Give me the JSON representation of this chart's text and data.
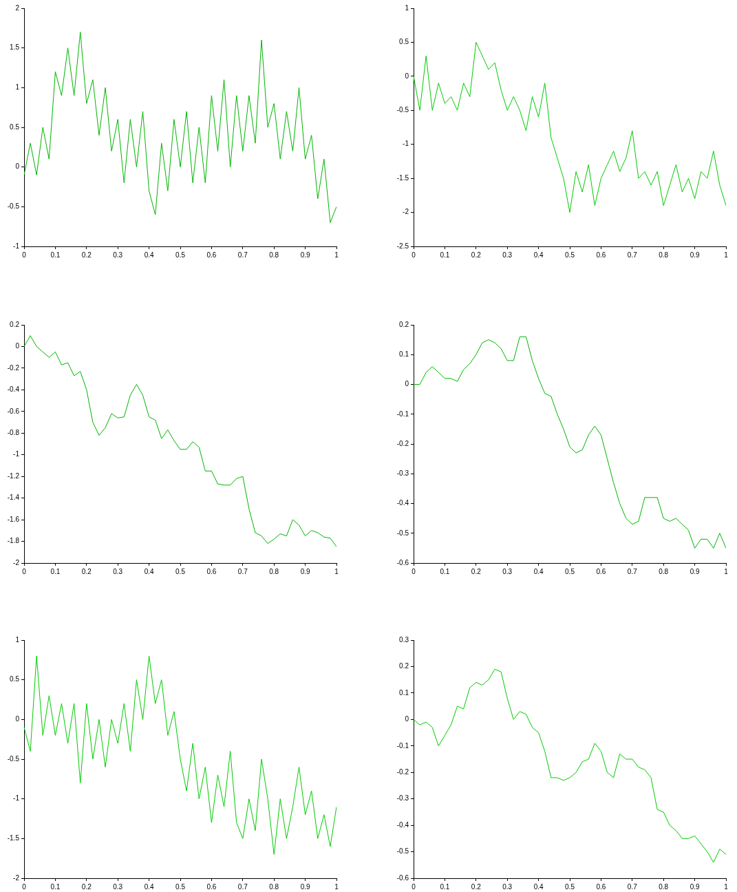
{
  "chart_data": [
    {
      "type": "line",
      "x": [
        0,
        0.02,
        0.04,
        0.06,
        0.08,
        0.1,
        0.12,
        0.14,
        0.16,
        0.18,
        0.2,
        0.22,
        0.24,
        0.26,
        0.28,
        0.3,
        0.32,
        0.34,
        0.36,
        0.38,
        0.4,
        0.42,
        0.44,
        0.46,
        0.48,
        0.5,
        0.52,
        0.54,
        0.56,
        0.58,
        0.6,
        0.62,
        0.64,
        0.66,
        0.68,
        0.7,
        0.72,
        0.74,
        0.76,
        0.78,
        0.8,
        0.82,
        0.84,
        0.86,
        0.88,
        0.9,
        0.92,
        0.94,
        0.96,
        0.98,
        1
      ],
      "series": [
        {
          "color": "#00b400",
          "values": [
            -0.1,
            0.3,
            -0.1,
            0.5,
            0.1,
            1.2,
            0.9,
            1.5,
            0.9,
            1.7,
            0.8,
            1.1,
            0.4,
            1.0,
            0.2,
            0.6,
            -0.2,
            0.6,
            0.0,
            0.7,
            -0.3,
            -0.6,
            0.3,
            -0.3,
            0.6,
            0.0,
            0.7,
            -0.2,
            0.5,
            -0.2,
            0.9,
            0.2,
            1.1,
            0.0,
            0.9,
            0.2,
            0.9,
            0.3,
            1.6,
            0.5,
            0.8,
            0.1,
            0.7,
            0.2,
            1.0,
            0.1,
            0.4,
            -0.4,
            0.1,
            -0.7,
            -0.5
          ]
        }
      ],
      "xlim": [
        0,
        1
      ],
      "xticks": [
        0,
        0.1,
        0.2,
        0.3,
        0.4,
        0.5,
        0.6,
        0.7,
        0.8,
        0.9,
        1
      ],
      "ylim": [
        -1,
        2
      ],
      "yticks": [
        -1,
        -0.5,
        0,
        0.5,
        1,
        1.5,
        2
      ],
      "grid": false,
      "legend": false,
      "marker": "none",
      "line_style": "solid"
    },
    {
      "type": "line",
      "x": [
        0,
        0.02,
        0.04,
        0.06,
        0.08,
        0.1,
        0.12,
        0.14,
        0.16,
        0.18,
        0.2,
        0.22,
        0.24,
        0.26,
        0.28,
        0.3,
        0.32,
        0.34,
        0.36,
        0.38,
        0.4,
        0.42,
        0.44,
        0.46,
        0.48,
        0.5,
        0.52,
        0.54,
        0.56,
        0.58,
        0.6,
        0.62,
        0.64,
        0.66,
        0.68,
        0.7,
        0.72,
        0.74,
        0.76,
        0.78,
        0.8,
        0.82,
        0.84,
        0.86,
        0.88,
        0.9,
        0.92,
        0.94,
        0.96,
        0.98,
        1
      ],
      "series": [
        {
          "color": "#00cc00",
          "values": [
            0.0,
            -0.5,
            0.3,
            -0.5,
            -0.1,
            -0.4,
            -0.3,
            -0.5,
            -0.1,
            -0.3,
            0.5,
            0.3,
            0.1,
            0.2,
            -0.2,
            -0.5,
            -0.3,
            -0.5,
            -0.8,
            -0.3,
            -0.6,
            -0.1,
            -0.9,
            -1.2,
            -1.5,
            -2.0,
            -1.4,
            -1.7,
            -1.3,
            -1.9,
            -1.5,
            -1.3,
            -1.1,
            -1.4,
            -1.2,
            -0.8,
            -1.5,
            -1.4,
            -1.6,
            -1.4,
            -1.9,
            -1.6,
            -1.3,
            -1.7,
            -1.5,
            -1.8,
            -1.4,
            -1.5,
            -1.1,
            -1.6,
            -1.9
          ]
        }
      ],
      "xlim": [
        0,
        1
      ],
      "xticks": [
        0,
        0.1,
        0.2,
        0.3,
        0.4,
        0.5,
        0.6,
        0.7,
        0.8,
        0.9,
        1
      ],
      "ylim": [
        -2.5,
        1
      ],
      "yticks": [
        -2.5,
        -2,
        -1.5,
        -1,
        -0.5,
        0,
        0.5,
        1
      ],
      "grid": false,
      "legend": false,
      "marker": "none",
      "line_style": "solid"
    },
    {
      "type": "line",
      "x": [
        0,
        0.02,
        0.04,
        0.06,
        0.08,
        0.1,
        0.12,
        0.14,
        0.16,
        0.18,
        0.2,
        0.22,
        0.24,
        0.26,
        0.28,
        0.3,
        0.32,
        0.34,
        0.36,
        0.38,
        0.4,
        0.42,
        0.44,
        0.46,
        0.48,
        0.5,
        0.52,
        0.54,
        0.56,
        0.58,
        0.6,
        0.62,
        0.64,
        0.66,
        0.68,
        0.7,
        0.72,
        0.74,
        0.76,
        0.78,
        0.8,
        0.82,
        0.84,
        0.86,
        0.88,
        0.9,
        0.92,
        0.94,
        0.96,
        0.98,
        1
      ],
      "series": [
        {
          "color": "#00b400",
          "values": [
            0,
            0.1,
            0.0,
            -0.05,
            -0.1,
            -0.05,
            -0.17,
            -0.15,
            -0.27,
            -0.23,
            -0.4,
            -0.7,
            -0.82,
            -0.75,
            -0.62,
            -0.66,
            -0.65,
            -0.45,
            -0.35,
            -0.45,
            -0.65,
            -0.68,
            -0.85,
            -0.77,
            -0.87,
            -0.95,
            -0.95,
            -0.88,
            -0.93,
            -1.15,
            -1.15,
            -1.27,
            -1.28,
            -1.28,
            -1.22,
            -1.2,
            -1.5,
            -1.72,
            -1.75,
            -1.82,
            -1.78,
            -1.73,
            -1.75,
            -1.6,
            -1.65,
            -1.75,
            -1.7,
            -1.72,
            -1.76,
            -1.77,
            -1.85
          ]
        }
      ],
      "xlim": [
        0,
        1
      ],
      "xticks": [
        0,
        0.1,
        0.2,
        0.3,
        0.4,
        0.5,
        0.6,
        0.7,
        0.8,
        0.9,
        1
      ],
      "ylim": [
        -2,
        0.2
      ],
      "yticks": [
        -2,
        -1.8,
        -1.6,
        -1.4,
        -1.2,
        -1,
        -0.8,
        -0.6,
        -0.4,
        -0.2,
        0,
        0.2
      ],
      "grid": false,
      "legend": false,
      "marker": "none",
      "line_style": "solid"
    },
    {
      "type": "line",
      "x": [
        0,
        0.02,
        0.04,
        0.06,
        0.08,
        0.1,
        0.12,
        0.14,
        0.16,
        0.18,
        0.2,
        0.22,
        0.24,
        0.26,
        0.28,
        0.3,
        0.32,
        0.34,
        0.36,
        0.38,
        0.4,
        0.42,
        0.44,
        0.46,
        0.48,
        0.5,
        0.52,
        0.54,
        0.56,
        0.58,
        0.6,
        0.62,
        0.64,
        0.66,
        0.68,
        0.7,
        0.72,
        0.74,
        0.76,
        0.78,
        0.8,
        0.82,
        0.84,
        0.86,
        0.88,
        0.9,
        0.92,
        0.94,
        0.96,
        0.98,
        1
      ],
      "series": [
        {
          "color": "#00b400",
          "values": [
            0,
            0.0,
            0.04,
            0.06,
            0.04,
            0.02,
            0.02,
            0.01,
            0.05,
            0.07,
            0.1,
            0.14,
            0.15,
            0.14,
            0.12,
            0.08,
            0.08,
            0.16,
            0.16,
            0.08,
            0.02,
            -0.03,
            -0.04,
            -0.1,
            -0.15,
            -0.21,
            -0.23,
            -0.22,
            -0.17,
            -0.14,
            -0.17,
            -0.25,
            -0.33,
            -0.4,
            -0.45,
            -0.47,
            -0.46,
            -0.38,
            -0.38,
            -0.38,
            -0.45,
            -0.46,
            -0.45,
            -0.47,
            -0.49,
            -0.55,
            -0.52,
            -0.52,
            -0.55,
            -0.5,
            -0.55
          ]
        }
      ],
      "xlim": [
        0,
        1
      ],
      "xticks": [
        0,
        0.1,
        0.2,
        0.3,
        0.4,
        0.5,
        0.6,
        0.7,
        0.8,
        0.9,
        1
      ],
      "ylim": [
        -0.6,
        0.2
      ],
      "yticks": [
        -0.6,
        -0.5,
        -0.4,
        -0.3,
        -0.2,
        -0.1,
        0,
        0.1,
        0.2
      ],
      "grid": false,
      "legend": false,
      "marker": "none",
      "line_style": "solid"
    },
    {
      "type": "line",
      "x": [
        0,
        0.02,
        0.04,
        0.06,
        0.08,
        0.1,
        0.12,
        0.14,
        0.16,
        0.18,
        0.2,
        0.22,
        0.24,
        0.26,
        0.28,
        0.3,
        0.32,
        0.34,
        0.36,
        0.38,
        0.4,
        0.42,
        0.44,
        0.46,
        0.48,
        0.5,
        0.52,
        0.54,
        0.56,
        0.58,
        0.6,
        0.62,
        0.64,
        0.66,
        0.68,
        0.7,
        0.72,
        0.74,
        0.76,
        0.78,
        0.8,
        0.82,
        0.84,
        0.86,
        0.88,
        0.9,
        0.92,
        0.94,
        0.96,
        0.98,
        1
      ],
      "series": [
        {
          "color": "#00cc00",
          "values": [
            -0.1,
            -0.4,
            0.8,
            -0.2,
            0.3,
            -0.2,
            0.2,
            -0.3,
            0.2,
            -0.8,
            0.2,
            -0.5,
            0.0,
            -0.6,
            0.0,
            -0.3,
            0.2,
            -0.4,
            0.5,
            0.0,
            0.8,
            0.2,
            0.5,
            -0.2,
            0.1,
            -0.5,
            -0.9,
            -0.3,
            -1.0,
            -0.6,
            -1.3,
            -0.7,
            -1.1,
            -0.4,
            -1.3,
            -1.5,
            -1.0,
            -1.4,
            -0.5,
            -1.0,
            -1.7,
            -1.0,
            -1.5,
            -1.1,
            -0.6,
            -1.2,
            -0.9,
            -1.5,
            -1.2,
            -1.6,
            -1.1
          ]
        }
      ],
      "xlim": [
        0,
        1
      ],
      "xticks": [
        0,
        0.1,
        0.2,
        0.3,
        0.4,
        0.5,
        0.6,
        0.7,
        0.8,
        0.9,
        1
      ],
      "ylim": [
        -2,
        1
      ],
      "yticks": [
        -2,
        -1.5,
        -1,
        -0.5,
        0,
        0.5,
        1
      ],
      "grid": false,
      "legend": false,
      "marker": "none",
      "line_style": "solid"
    },
    {
      "type": "line",
      "x": [
        0,
        0.02,
        0.04,
        0.06,
        0.08,
        0.1,
        0.12,
        0.14,
        0.16,
        0.18,
        0.2,
        0.22,
        0.24,
        0.26,
        0.28,
        0.3,
        0.32,
        0.34,
        0.36,
        0.38,
        0.4,
        0.42,
        0.44,
        0.46,
        0.48,
        0.5,
        0.52,
        0.54,
        0.56,
        0.58,
        0.6,
        0.62,
        0.64,
        0.66,
        0.68,
        0.7,
        0.72,
        0.74,
        0.76,
        0.78,
        0.8,
        0.82,
        0.84,
        0.86,
        0.88,
        0.9,
        0.92,
        0.94,
        0.96,
        0.98,
        1
      ],
      "series": [
        {
          "color": "#00cc00",
          "values": [
            0,
            -0.02,
            -0.01,
            -0.03,
            -0.1,
            -0.06,
            -0.02,
            0.05,
            0.04,
            0.12,
            0.14,
            0.13,
            0.15,
            0.19,
            0.18,
            0.08,
            0.0,
            0.03,
            0.02,
            -0.03,
            -0.05,
            -0.12,
            -0.22,
            -0.22,
            -0.23,
            -0.22,
            -0.2,
            -0.16,
            -0.15,
            -0.09,
            -0.12,
            -0.2,
            -0.22,
            -0.13,
            -0.15,
            -0.15,
            -0.18,
            -0.19,
            -0.22,
            -0.34,
            -0.35,
            -0.4,
            -0.42,
            -0.45,
            -0.45,
            -0.44,
            -0.47,
            -0.5,
            -0.54,
            -0.49,
            -0.51
          ]
        }
      ],
      "xlim": [
        0,
        1
      ],
      "xticks": [
        0,
        0.1,
        0.2,
        0.3,
        0.4,
        0.5,
        0.6,
        0.7,
        0.8,
        0.9,
        1
      ],
      "ylim": [
        -0.6,
        0.3
      ],
      "yticks": [
        -0.6,
        -0.5,
        -0.4,
        -0.3,
        -0.2,
        -0.1,
        0,
        0.1,
        0.2,
        0.3
      ],
      "grid": false,
      "legend": false,
      "marker": "none",
      "line_style": "solid"
    }
  ]
}
